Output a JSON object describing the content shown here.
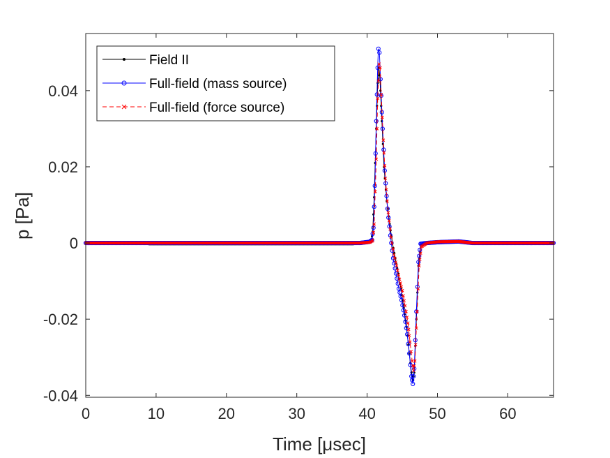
{
  "chart_data": {
    "type": "line",
    "title": "",
    "xlabel": "Time [μsec]",
    "ylabel": "p [Pa]",
    "xlim": [
      0,
      66.5
    ],
    "ylim": [
      -0.0405,
      0.055
    ],
    "xticks": [
      0,
      10,
      20,
      30,
      40,
      50,
      60
    ],
    "xtick_labels": [
      "0",
      "10",
      "20",
      "30",
      "40",
      "50",
      "60"
    ],
    "yticks": [
      -0.04,
      -0.02,
      0,
      0.02,
      0.04
    ],
    "ytick_labels": [
      "-0.04",
      "-0.02",
      "0",
      "0.02",
      "0.04"
    ],
    "grid": false,
    "legend_position": "top-left",
    "series": [
      {
        "name": "Field II",
        "color": "#000000",
        "line_style": "solid",
        "marker": "dot",
        "points": [
          [
            0,
            0
          ],
          [
            8.5,
            0
          ],
          [
            9,
            -0.0003
          ],
          [
            20,
            -0.0003
          ],
          [
            38,
            -0.0003
          ],
          [
            39.5,
            0
          ],
          [
            40.2,
            0.0004
          ],
          [
            40.6,
            0.0005
          ],
          [
            40.8,
            0.003
          ],
          [
            41.0,
            0.012
          ],
          [
            41.3,
            0.03
          ],
          [
            41.5,
            0.042
          ],
          [
            41.65,
            0.046
          ],
          [
            41.8,
            0.044
          ],
          [
            42.1,
            0.032
          ],
          [
            42.4,
            0.02
          ],
          [
            42.8,
            0.011
          ],
          [
            43.2,
            0.005
          ],
          [
            43.6,
            0.0
          ],
          [
            44.0,
            -0.004
          ],
          [
            44.4,
            -0.008
          ],
          [
            44.8,
            -0.012
          ],
          [
            45.2,
            -0.017
          ],
          [
            45.6,
            -0.022
          ],
          [
            46.0,
            -0.029
          ],
          [
            46.3,
            -0.034
          ],
          [
            46.5,
            -0.036
          ],
          [
            46.7,
            -0.034
          ],
          [
            47.0,
            -0.02
          ],
          [
            47.3,
            -0.006
          ],
          [
            47.6,
            -0.0005
          ],
          [
            48.2,
            0
          ],
          [
            49.5,
            0.0002
          ],
          [
            53,
            0.0004
          ],
          [
            55,
            0
          ],
          [
            66.5,
            0
          ]
        ]
      },
      {
        "name": "Full-field (mass source)",
        "color": "#0000ff",
        "line_style": "solid",
        "marker": "circle",
        "points": [
          [
            0,
            0
          ],
          [
            20,
            0
          ],
          [
            39,
            0
          ],
          [
            40.3,
            0.0003
          ],
          [
            40.7,
            0.0008
          ],
          [
            40.9,
            0.004
          ],
          [
            41.1,
            0.015
          ],
          [
            41.3,
            0.032
          ],
          [
            41.5,
            0.046
          ],
          [
            41.6,
            0.051
          ],
          [
            41.75,
            0.05
          ],
          [
            41.9,
            0.043
          ],
          [
            42.2,
            0.03
          ],
          [
            42.5,
            0.019
          ],
          [
            42.9,
            0.009
          ],
          [
            43.3,
            0.002
          ],
          [
            43.7,
            -0.004
          ],
          [
            44.1,
            -0.008
          ],
          [
            44.5,
            -0.012
          ],
          [
            44.9,
            -0.015
          ],
          [
            45.3,
            -0.019
          ],
          [
            45.7,
            -0.024
          ],
          [
            46.0,
            -0.029
          ],
          [
            46.3,
            -0.035
          ],
          [
            46.5,
            -0.037
          ],
          [
            46.7,
            -0.033
          ],
          [
            47.0,
            -0.018
          ],
          [
            47.3,
            -0.005
          ],
          [
            47.6,
            -0.0002
          ],
          [
            48.5,
            0
          ],
          [
            50,
            0.0002
          ],
          [
            53,
            0.0004
          ],
          [
            55,
            0
          ],
          [
            66.5,
            0
          ]
        ]
      },
      {
        "name": "Full-field (force source)",
        "color": "#ff0000",
        "line_style": "dashed",
        "marker": "x",
        "points": [
          [
            0,
            0
          ],
          [
            20,
            0
          ],
          [
            39,
            0
          ],
          [
            40.4,
            0.0002
          ],
          [
            40.8,
            0.0006
          ],
          [
            41.0,
            0.005
          ],
          [
            41.3,
            0.022
          ],
          [
            41.5,
            0.038
          ],
          [
            41.7,
            0.047
          ],
          [
            41.85,
            0.046
          ],
          [
            42.0,
            0.039
          ],
          [
            42.3,
            0.027
          ],
          [
            42.6,
            0.017
          ],
          [
            43.0,
            0.008
          ],
          [
            43.4,
            0.0015
          ],
          [
            43.8,
            -0.003
          ],
          [
            44.2,
            -0.006
          ],
          [
            44.6,
            -0.0095
          ],
          [
            45.0,
            -0.0125
          ],
          [
            45.4,
            -0.0165
          ],
          [
            45.8,
            -0.021
          ],
          [
            46.1,
            -0.026
          ],
          [
            46.4,
            -0.031
          ],
          [
            46.6,
            -0.0335
          ],
          [
            46.8,
            -0.031
          ],
          [
            47.1,
            -0.018
          ],
          [
            47.4,
            -0.006
          ],
          [
            47.7,
            -0.001
          ],
          [
            48.5,
            0
          ],
          [
            50,
            0.0003
          ],
          [
            53,
            0.0004
          ],
          [
            55,
            0
          ],
          [
            66.5,
            0
          ]
        ]
      }
    ]
  }
}
